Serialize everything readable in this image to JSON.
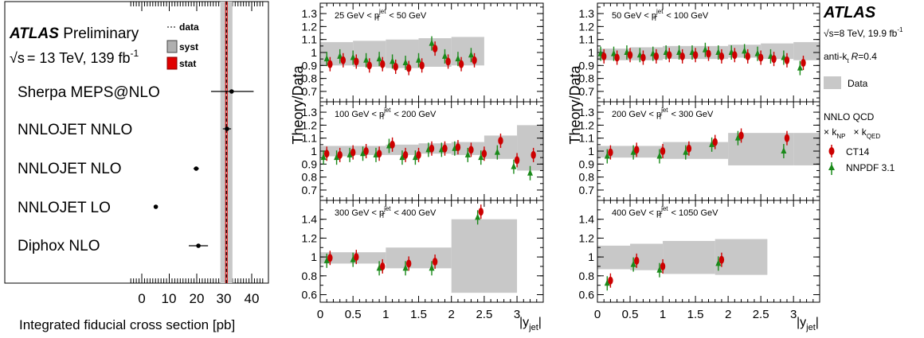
{
  "left_panel": {
    "atlas_bold": "ATLAS",
    "atlas_rest": "Preliminary",
    "energy_sqrt": "√s",
    "energy_text": "= 13 TeV, 139 fb",
    "energy_sup": "-1",
    "legend": {
      "data": "data",
      "syst": "syst",
      "stat": "stat"
    },
    "xlabel": "Integrated fiducial cross section [pb]",
    "xticks": [
      "0",
      "10",
      "20",
      "30",
      "40"
    ],
    "band_color": "#c8c8c8",
    "stat_color": "#e00000"
  },
  "right_panel": {
    "atlas": "ATLAS",
    "energy_sqrt": "√s",
    "energy_text": "=8 TeV, 19.9 fb",
    "energy_sup": "-1",
    "algo_prefix": "anti-k",
    "algo_sub": "t",
    "algo_r": "R",
    "algo_val": "=0.4",
    "legend_data": "Data",
    "nnlo_title": "NNLO QCD",
    "knp_prefix": "× k",
    "knp_sub": "NP",
    "kqed_prefix": "× k",
    "kqed_sub": "QED",
    "series": [
      {
        "name": "CT14",
        "color": "#cc0000"
      },
      {
        "name": "NNPDF 3.1",
        "color": "#1a8a1a"
      }
    ],
    "ylabel": "Theory/Data",
    "xlabel_main": "|y",
    "xlabel_sub": "jet",
    "xlabel_close": "|",
    "ratio_ticks_top": [
      "0.7",
      "0.8",
      "0.9",
      "1",
      "1.1",
      "1.2",
      "1.3"
    ],
    "ratio_ticks_bottom": [
      "0.6",
      "0.8",
      "1",
      "1.2",
      "1.4"
    ],
    "x_ticks": [
      "0",
      "0.5",
      "1",
      "1.5",
      "2",
      "2.5",
      "3"
    ]
  },
  "chart_data": [
    {
      "type": "scatter",
      "title": "",
      "xlabel": "Integrated fiducial cross section [pb]",
      "xlim": [
        -4,
        44
      ],
      "data_value": 30.8,
      "syst_band": [
        28.6,
        33.0
      ],
      "stat_band": [
        30.5,
        31.1
      ],
      "points": [
        {
          "label": "Sherpa MEPS@NLO",
          "value": 32.7,
          "err_lo": 7.5,
          "err_hi": 8.0
        },
        {
          "label": "NNLOJET NNLO",
          "value": 31.0,
          "err_lo": 1.5,
          "err_hi": 1.5
        },
        {
          "label": "NNLOJET NLO",
          "value": 19.8,
          "err_lo": 1.0,
          "err_hi": 1.0
        },
        {
          "label": "NNLOJET LO",
          "value": 5.1,
          "err_lo": 0.0,
          "err_hi": 0.0
        },
        {
          "label": "Diphox NLO",
          "value": 20.6,
          "err_lo": 3.5,
          "err_hi": 3.5
        }
      ]
    },
    {
      "type": "scatter",
      "ylabel": "Theory/Data",
      "xlabel": "|y_jet|",
      "grid": false,
      "panels": [
        {
          "label_pre": "25 GeV < p",
          "label_post": " < 50 GeV",
          "ylim": [
            0.62,
            1.38
          ],
          "band_edges": [
            0,
            0.5,
            1,
            1.5,
            2,
            2.5
          ],
          "band_lo": [
            0.9,
            0.89,
            0.88,
            0.89,
            0.9
          ],
          "band_hi": [
            1.08,
            1.09,
            1.1,
            1.11,
            1.12
          ],
          "red": [
            [
              0.15,
              0.91
            ],
            [
              0.35,
              0.94
            ],
            [
              0.55,
              0.93
            ],
            [
              0.75,
              0.9
            ],
            [
              0.95,
              0.91
            ],
            [
              1.15,
              0.89
            ],
            [
              1.35,
              0.88
            ],
            [
              1.55,
              0.9
            ],
            [
              1.75,
              1.03
            ],
            [
              1.95,
              0.93
            ],
            [
              2.15,
              0.91
            ],
            [
              2.35,
              0.94
            ]
          ],
          "green": [
            [
              0.1,
              0.95
            ],
            [
              0.3,
              0.97
            ],
            [
              0.5,
              0.96
            ],
            [
              0.7,
              0.94
            ],
            [
              0.9,
              0.95
            ],
            [
              1.1,
              0.93
            ],
            [
              1.3,
              0.92
            ],
            [
              1.5,
              0.94
            ],
            [
              1.7,
              1.07
            ],
            [
              1.9,
              0.97
            ],
            [
              2.1,
              0.95
            ],
            [
              2.3,
              0.98
            ]
          ]
        },
        {
          "label_pre": "50 GeV < p",
          "label_post": " < 100 GeV",
          "ylim": [
            0.62,
            1.38
          ],
          "band_edges": [
            0,
            0.5,
            1,
            1.5,
            2,
            2.5,
            3,
            3.4
          ],
          "band_lo": [
            0.94,
            0.94,
            0.95,
            0.95,
            0.96,
            0.95,
            0.94
          ],
          "band_hi": [
            1.03,
            1.04,
            1.05,
            1.05,
            1.06,
            1.07,
            1.08
          ],
          "red": [
            [
              0.1,
              0.97
            ],
            [
              0.3,
              0.96
            ],
            [
              0.5,
              0.98
            ],
            [
              0.7,
              0.96
            ],
            [
              0.9,
              0.97
            ],
            [
              1.1,
              0.98
            ],
            [
              1.3,
              0.97
            ],
            [
              1.5,
              0.98
            ],
            [
              1.7,
              0.99
            ],
            [
              1.9,
              0.97
            ],
            [
              2.1,
              0.98
            ],
            [
              2.3,
              0.97
            ],
            [
              2.5,
              0.96
            ],
            [
              2.7,
              0.95
            ],
            [
              2.9,
              0.94
            ],
            [
              3.15,
              0.92
            ]
          ],
          "green": [
            [
              0.05,
              0.99
            ],
            [
              0.25,
              0.99
            ],
            [
              0.45,
              1.0
            ],
            [
              0.65,
              0.98
            ],
            [
              0.85,
              0.99
            ],
            [
              1.05,
              1.0
            ],
            [
              1.25,
              1.0
            ],
            [
              1.45,
              1.0
            ],
            [
              1.65,
              1.02
            ],
            [
              1.85,
              1.0
            ],
            [
              2.05,
              1.0
            ],
            [
              2.25,
              1.01
            ],
            [
              2.45,
              0.99
            ],
            [
              2.65,
              0.97
            ],
            [
              2.85,
              0.96
            ],
            [
              3.1,
              0.88
            ]
          ]
        },
        {
          "label_pre": "100 GeV < p",
          "label_post": " < 200 GeV",
          "ylim": [
            0.62,
            1.38
          ],
          "band_edges": [
            0,
            0.5,
            1,
            1.5,
            2,
            2.5,
            3,
            3.4
          ],
          "band_lo": [
            0.96,
            0.97,
            0.97,
            0.98,
            0.97,
            0.94,
            0.85
          ],
          "band_hi": [
            1.04,
            1.04,
            1.05,
            1.06,
            1.07,
            1.12,
            1.2
          ],
          "red": [
            [
              0.1,
              0.98
            ],
            [
              0.3,
              0.97
            ],
            [
              0.5,
              0.99
            ],
            [
              0.7,
              1.0
            ],
            [
              0.9,
              0.98
            ],
            [
              1.1,
              1.05
            ],
            [
              1.3,
              0.97
            ],
            [
              1.5,
              0.97
            ],
            [
              1.7,
              1.02
            ],
            [
              1.9,
              1.02
            ],
            [
              2.1,
              1.03
            ],
            [
              2.3,
              1.01
            ],
            [
              2.5,
              0.98
            ],
            [
              2.75,
              1.08
            ],
            [
              3.0,
              0.93
            ],
            [
              3.25,
              0.97
            ]
          ],
          "green": [
            [
              0.05,
              0.95
            ],
            [
              0.25,
              0.95
            ],
            [
              0.45,
              0.97
            ],
            [
              0.65,
              0.98
            ],
            [
              0.85,
              0.97
            ],
            [
              1.05,
              1.04
            ],
            [
              1.25,
              0.95
            ],
            [
              1.45,
              0.95
            ],
            [
              1.65,
              1.01
            ],
            [
              1.85,
              1.01
            ],
            [
              2.05,
              1.02
            ],
            [
              2.25,
              0.97
            ],
            [
              2.45,
              0.95
            ],
            [
              2.7,
              0.99
            ],
            [
              2.95,
              0.88
            ],
            [
              3.2,
              0.83
            ]
          ]
        },
        {
          "label_pre": "200 GeV < p",
          "label_post": " < 300 GeV",
          "ylim": [
            0.62,
            1.38
          ],
          "band_edges": [
            0,
            1,
            2,
            3,
            3.4
          ],
          "band_lo": [
            0.95,
            0.94,
            0.89,
            0.89
          ],
          "band_hi": [
            1.04,
            1.07,
            1.14,
            1.14
          ],
          "red": [
            [
              0.2,
              0.99
            ],
            [
              0.6,
              1.01
            ],
            [
              1.0,
              1.0
            ],
            [
              1.4,
              1.02
            ],
            [
              1.8,
              1.07
            ],
            [
              2.2,
              1.12
            ],
            [
              2.9,
              1.1
            ]
          ],
          "green": [
            [
              0.15,
              0.96
            ],
            [
              0.55,
              0.99
            ],
            [
              0.95,
              0.96
            ],
            [
              1.35,
              0.99
            ],
            [
              1.75,
              1.05
            ],
            [
              2.15,
              1.1
            ],
            [
              2.85,
              1.0
            ]
          ]
        },
        {
          "label_pre": "300 GeV < p",
          "label_post": " < 400 GeV",
          "ylim": [
            0.52,
            1.6
          ],
          "band_edges": [
            0,
            1,
            2,
            3
          ],
          "band_lo": [
            0.93,
            0.88,
            0.62
          ],
          "band_hi": [
            1.05,
            1.1,
            1.4
          ],
          "red": [
            [
              0.15,
              0.99
            ],
            [
              0.55,
              1.0
            ],
            [
              0.95,
              0.9
            ],
            [
              1.35,
              0.93
            ],
            [
              1.75,
              0.95
            ],
            [
              2.45,
              1.48
            ]
          ],
          "green": [
            [
              0.1,
              0.96
            ],
            [
              0.5,
              0.97
            ],
            [
              0.9,
              0.88
            ],
            [
              1.3,
              0.88
            ],
            [
              1.7,
              0.88
            ],
            [
              2.4,
              1.42
            ]
          ]
        },
        {
          "label_pre": "400 GeV < p",
          "label_post": " < 1050 GeV",
          "ylim": [
            0.52,
            1.6
          ],
          "band_edges": [
            0,
            0.5,
            1,
            1.8,
            2.6
          ],
          "band_lo": [
            0.87,
            0.86,
            0.82,
            0.81
          ],
          "band_hi": [
            1.12,
            1.14,
            1.17,
            1.19
          ],
          "red": [
            [
              0.2,
              0.75
            ],
            [
              0.6,
              0.96
            ],
            [
              1.0,
              0.9
            ],
            [
              1.9,
              0.97
            ]
          ],
          "green": [
            [
              0.15,
              0.72
            ],
            [
              0.55,
              0.92
            ],
            [
              0.95,
              0.86
            ],
            [
              1.85,
              0.93
            ]
          ]
        }
      ]
    }
  ]
}
